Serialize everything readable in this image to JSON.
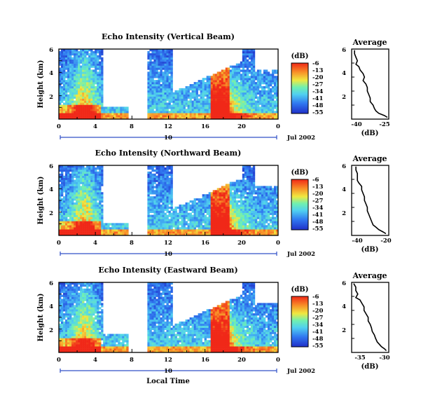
{
  "figure": {
    "xlabel": "Local Time",
    "date_label": "Jul 2002",
    "timeline_label": "10",
    "colorbar_unit": "(dB)",
    "colorbar_ticks": [
      "-6",
      "-13",
      "-20",
      "-27",
      "-34",
      "-41",
      "-48",
      "-55"
    ],
    "colors": {
      "low": "#2030c8",
      "mid": "#60e0e8",
      "yellow": "#f0e840",
      "high": "#f03020"
    }
  },
  "chart_data": [
    {
      "type": "heatmap",
      "title": "Echo Intensity (Vertical Beam)",
      "ylabel": "Height (km)",
      "x_ticks": [
        "0",
        "4",
        "8",
        "12",
        "16",
        "20",
        "0"
      ],
      "y_ticks": [
        "6",
        "4",
        "2"
      ],
      "xlim": [
        0,
        24
      ],
      "ylim": [
        0,
        6
      ],
      "colorbar": {
        "label": "(dB)",
        "range": [
          -55,
          -6
        ]
      },
      "profile": {
        "type": "line",
        "title": "Average",
        "xlabel": "(dB)",
        "x_ticks": [
          "-40",
          "-25"
        ],
        "xlim": [
          -46,
          -20
        ],
        "y_ticks": [
          "6",
          "4",
          "2"
        ],
        "ylim": [
          0,
          6
        ],
        "x": [
          -44,
          -44,
          -43,
          -42,
          -43,
          -41,
          -40,
          -38,
          -37,
          -38,
          -36,
          -35,
          -35,
          -34,
          -33,
          -33,
          -31,
          -30,
          -29,
          -27,
          -23,
          -21
        ],
        "y": [
          5.9,
          5.6,
          5.3,
          5.0,
          4.7,
          4.5,
          4.2,
          3.9,
          3.6,
          3.3,
          3.0,
          2.7,
          2.4,
          2.1,
          1.8,
          1.5,
          1.2,
          0.9,
          0.7,
          0.5,
          0.3,
          0.15
        ]
      }
    },
    {
      "type": "heatmap",
      "title": "Echo Intensity (Northward Beam)",
      "ylabel": "Height (km)",
      "x_ticks": [
        "0",
        "4",
        "8",
        "12",
        "16",
        "20",
        "0"
      ],
      "y_ticks": [
        "6",
        "4",
        "2"
      ],
      "xlim": [
        0,
        24
      ],
      "ylim": [
        0,
        6
      ],
      "colorbar": {
        "label": "(dB)",
        "range": [
          -55,
          -6
        ]
      },
      "profile": {
        "type": "line",
        "title": "Average",
        "xlabel": "(dB)",
        "x_ticks": [
          "-40",
          "-20"
        ],
        "xlim": [
          -44,
          -18
        ],
        "y_ticks": [
          "6",
          "4",
          "2"
        ],
        "ylim": [
          0,
          6
        ],
        "x": [
          -41,
          -41,
          -40,
          -40,
          -40,
          -39,
          -37,
          -37,
          -36,
          -35,
          -35,
          -34,
          -33,
          -33,
          -32,
          -31,
          -30,
          -29,
          -27,
          -25,
          -22,
          -20
        ],
        "y": [
          5.9,
          5.6,
          5.3,
          5.0,
          4.7,
          4.5,
          4.2,
          3.9,
          3.6,
          3.3,
          3.0,
          2.7,
          2.4,
          2.1,
          1.8,
          1.5,
          1.2,
          0.9,
          0.7,
          0.5,
          0.3,
          0.15
        ]
      }
    },
    {
      "type": "heatmap",
      "title": "Echo Intensity (Eastward Beam)",
      "ylabel": "Height (km)",
      "x_ticks": [
        "0",
        "4",
        "8",
        "12",
        "16",
        "20",
        "0"
      ],
      "y_ticks": [
        "6",
        "4",
        "2"
      ],
      "xlim": [
        0,
        24
      ],
      "ylim": [
        0,
        6
      ],
      "colorbar": {
        "label": "(dB)",
        "range": [
          -55,
          -6
        ]
      },
      "profile": {
        "type": "line",
        "title": "Average",
        "xlabel": "(dB)",
        "x_ticks": [
          "-35",
          "-30"
        ],
        "xlim": [
          -38,
          -29
        ],
        "y_ticks": [
          "6",
          "4",
          "2"
        ],
        "ylim": [
          0,
          6
        ],
        "x": [
          -37.5,
          -37,
          -37,
          -36.5,
          -37,
          -36,
          -35.5,
          -35,
          -35,
          -34.5,
          -34,
          -34,
          -33.5,
          -33.2,
          -33,
          -32.5,
          -32.2,
          -31.8,
          -31.3,
          -30.8,
          -30,
          -29.6
        ],
        "y": [
          5.9,
          5.6,
          5.3,
          5.0,
          4.7,
          4.5,
          4.2,
          3.9,
          3.6,
          3.3,
          3.0,
          2.7,
          2.4,
          2.1,
          1.8,
          1.5,
          1.2,
          0.9,
          0.7,
          0.5,
          0.3,
          0.15
        ]
      }
    }
  ]
}
